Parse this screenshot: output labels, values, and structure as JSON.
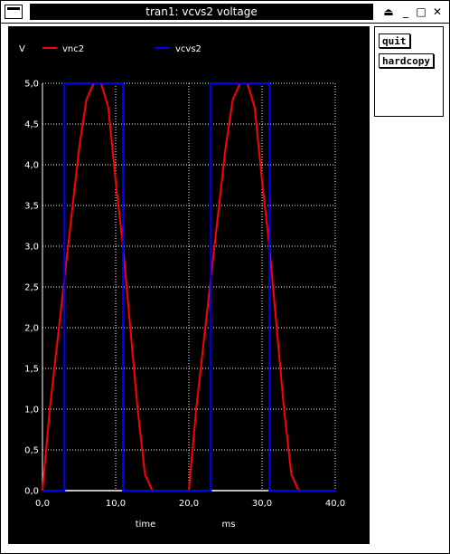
{
  "window": {
    "title": "tran1: vcvs2 voltage",
    "icons": [
      "window-menu-icon",
      "shade-icon",
      "minimize-icon",
      "maximize-icon",
      "close-icon"
    ],
    "buttons": {
      "shade": "⏏",
      "minimize": "_",
      "maximize": "□",
      "close": "✕"
    }
  },
  "side_panel": {
    "quit_label": "quit",
    "hardcopy_label": "hardcopy"
  },
  "colors": {
    "background": "#000000",
    "grid": "#ffffff",
    "text": "#ffffff",
    "vnc2": "#ff0000",
    "vcvs2": "#0000ff"
  },
  "chart_data": {
    "type": "line",
    "ylabel": "V",
    "xlabel": "time",
    "xunit": "ms",
    "xlim": [
      0,
      40
    ],
    "ylim": [
      0,
      5
    ],
    "xticks": [
      "0,0",
      "10,0",
      "20,0",
      "30,0",
      "40,0"
    ],
    "yticks": [
      "0,0",
      "0,5",
      "1,0",
      "1,5",
      "2,0",
      "2,5",
      "3,0",
      "3,5",
      "4,0",
      "4,5",
      "5,0"
    ],
    "grid": true,
    "legend_placement": "top",
    "series": [
      {
        "name": "vnc2",
        "color": "#ff0000",
        "x": [
          0,
          1,
          2,
          3,
          4,
          5,
          6,
          7,
          8,
          9,
          10,
          11,
          12,
          13,
          14,
          15,
          20,
          21,
          22,
          23,
          24,
          25,
          26,
          27,
          28,
          29,
          30,
          31,
          32,
          33,
          34,
          35,
          40
        ],
        "y": [
          0,
          1.0,
          1.8,
          2.6,
          3.4,
          4.2,
          4.8,
          5.0,
          5.0,
          4.7,
          3.8,
          3.0,
          2.0,
          1.0,
          0.2,
          0,
          0,
          1.0,
          1.8,
          2.6,
          3.4,
          4.2,
          4.8,
          5.0,
          5.0,
          4.7,
          3.8,
          3.0,
          2.0,
          1.0,
          0.2,
          0,
          0
        ]
      },
      {
        "name": "vcvs2",
        "color": "#0000ff",
        "x": [
          0,
          3,
          3,
          11,
          11,
          23,
          23,
          31,
          31,
          40
        ],
        "y": [
          0,
          0,
          5,
          5,
          0,
          0,
          5,
          5,
          0,
          0
        ]
      }
    ]
  }
}
